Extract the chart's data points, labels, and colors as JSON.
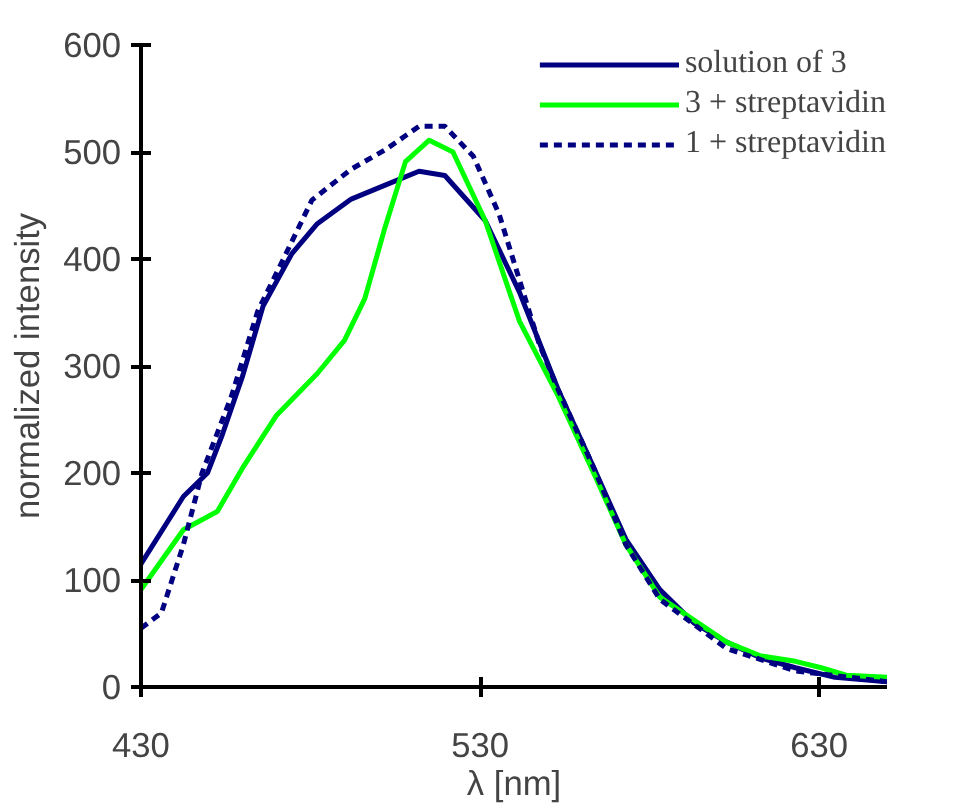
{
  "chart_data": {
    "type": "line",
    "xlabel": "λ [nm]",
    "ylabel": "normalized intensity",
    "xlim": [
      430,
      650
    ],
    "xticks": [
      430,
      530,
      630
    ],
    "ylim": [
      0,
      600
    ],
    "yticks": [
      0,
      100,
      200,
      300,
      400,
      500,
      600
    ],
    "grid": false,
    "legend": "top right",
    "marker": "none",
    "series": [
      {
        "name": "solution of 3",
        "color": "#000080",
        "line_style": "solid",
        "x": [
          430,
          442.5,
          449.6,
          454,
          460,
          466,
          474.5,
          482,
          492,
          502,
          512,
          519.6,
          531.5,
          541.6,
          553,
          563.5,
          573,
          583,
          593,
          602.7,
          612.8,
          623,
          634.7,
          650
        ],
        "values": [
          115,
          178,
          200,
          236,
          291,
          356,
          405,
          433,
          456,
          469,
          482,
          478,
          436,
          369,
          278,
          205,
          138,
          91,
          60,
          42,
          27,
          18,
          9,
          5
        ]
      },
      {
        "name": "3 + streptavidin",
        "color": "#00ff00",
        "line_style": "solid",
        "x": [
          430,
          442.5,
          452.5,
          460,
          470,
          482,
          490,
          496,
          502,
          508,
          515,
          522,
          531.5,
          541.6,
          553,
          563.5,
          573,
          583,
          602.7,
          612.8,
          623,
          630.6,
          638,
          650
        ],
        "values": [
          91,
          147,
          164,
          205,
          254,
          293,
          324,
          363,
          430,
          491,
          511,
          500,
          436,
          342,
          272,
          200,
          133,
          84,
          42,
          29,
          24,
          18,
          11,
          9
        ]
      },
      {
        "name": "1 + streptavidin",
        "color": "#000080",
        "line_style": "dashed",
        "x": [
          430,
          436,
          442.5,
          448,
          456.7,
          464.4,
          472,
          480.4,
          492,
          502,
          512,
          519.6,
          528,
          535.6,
          547.5,
          553,
          563.5,
          573,
          583,
          602.7,
          623,
          650
        ],
        "values": [
          55,
          69,
          133,
          200,
          272,
          351,
          400,
          455,
          484,
          502,
          524,
          524,
          496,
          442,
          320,
          278,
          205,
          133,
          82,
          36,
          15,
          5
        ]
      }
    ]
  }
}
